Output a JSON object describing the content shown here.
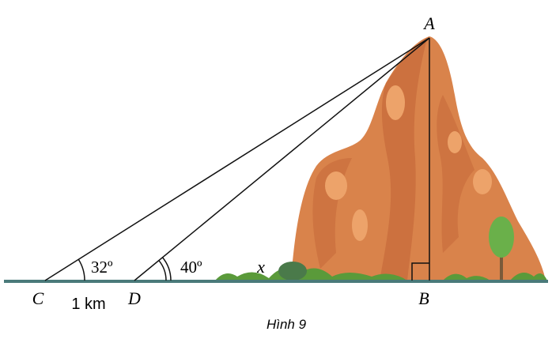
{
  "labels": {
    "A": "A",
    "B": "B",
    "C": "C",
    "D": "D"
  },
  "angles": {
    "C": "32º",
    "D": "40º"
  },
  "segment_x": "x",
  "distance_CD": "1 km",
  "caption": "Hình 9"
}
